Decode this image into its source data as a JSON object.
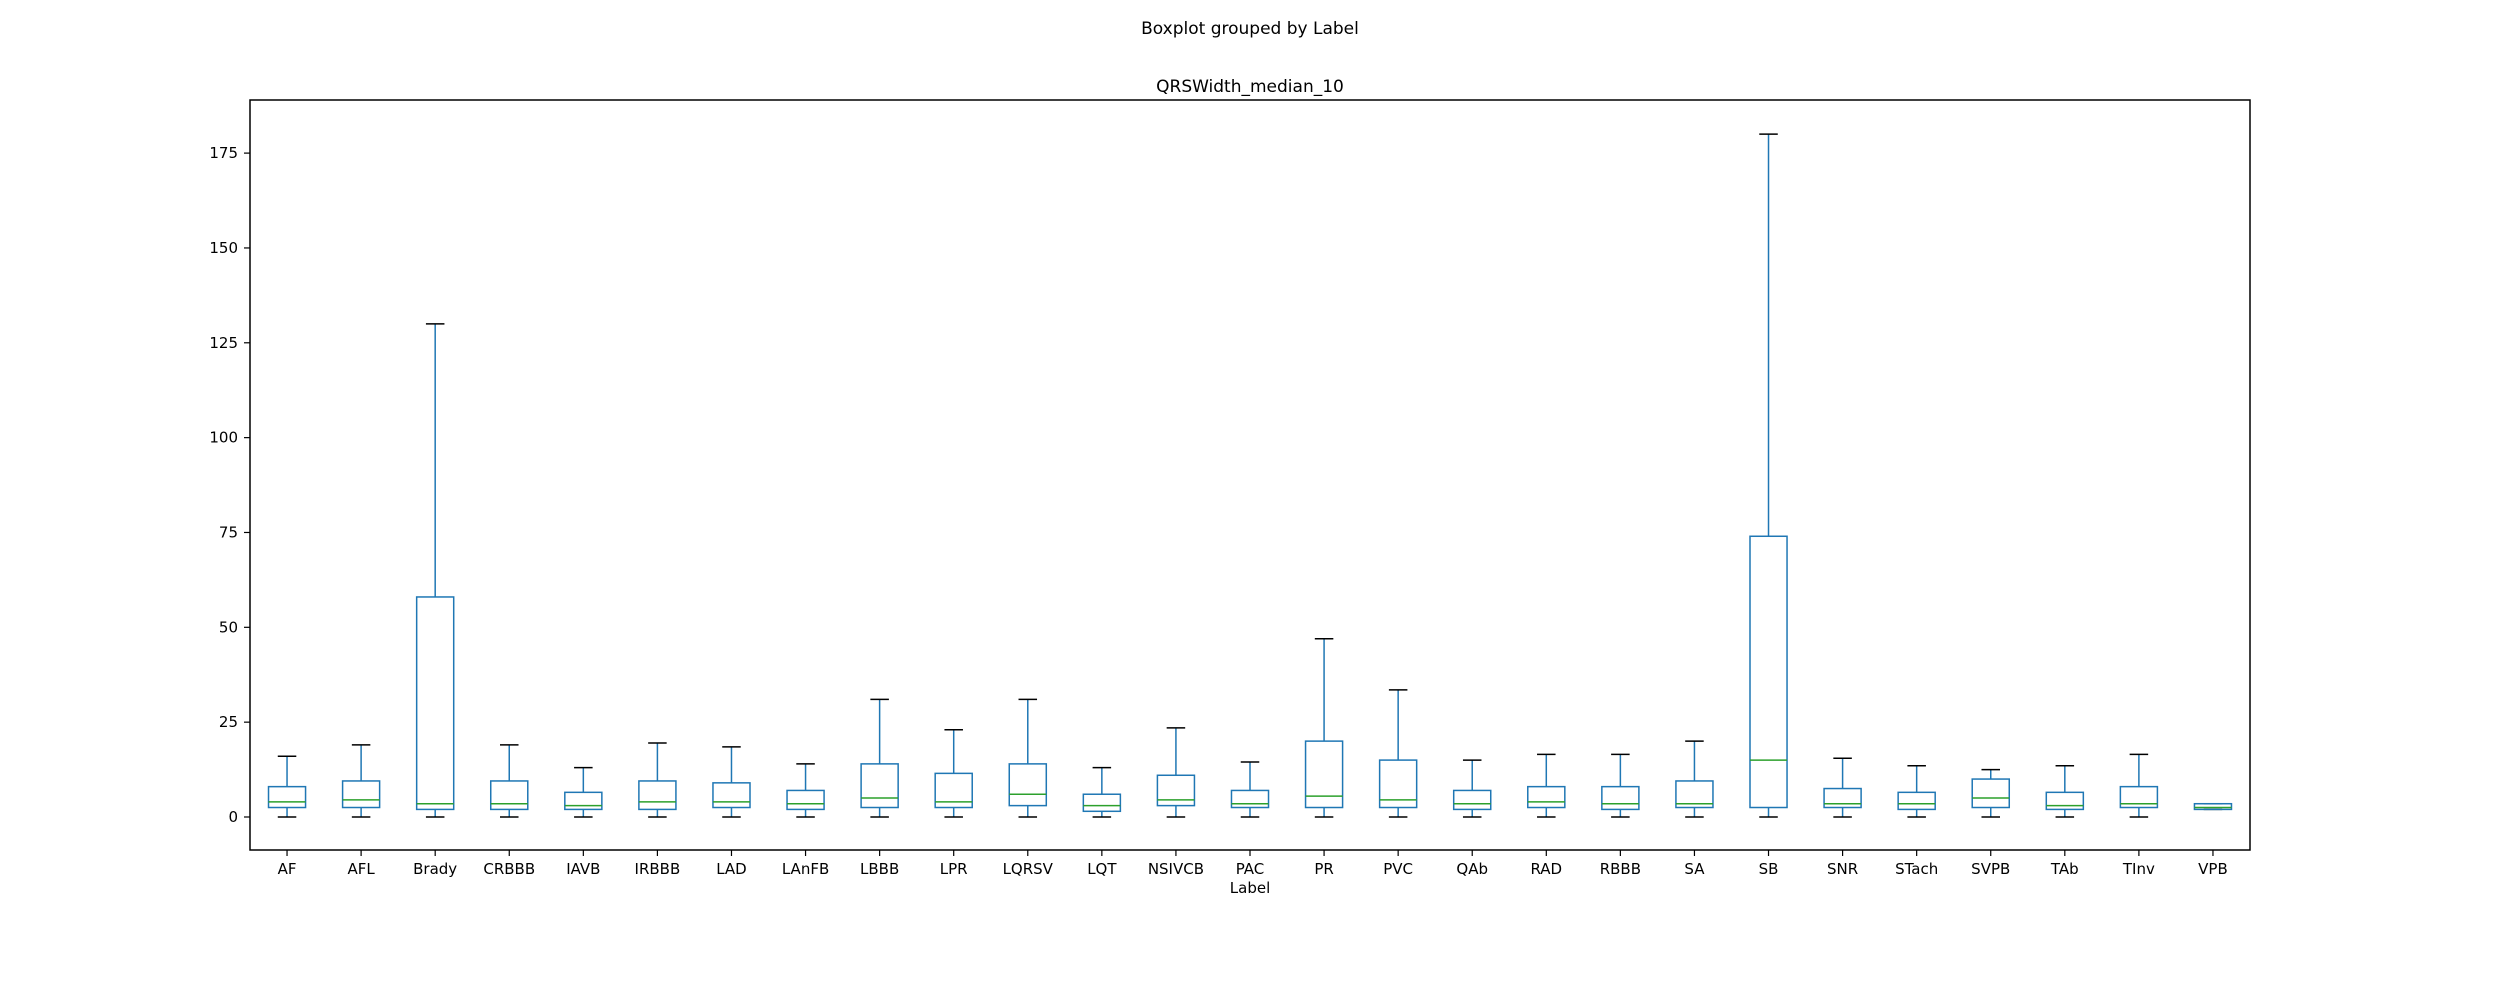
{
  "figure": {
    "suptitle": "Boxplot grouped by Label"
  },
  "chart_data": {
    "type": "boxplot",
    "title": "QRSWidth_median_10",
    "xlabel": "Label",
    "ylabel": "",
    "ylim": [
      -8.7,
      189.0
    ],
    "yticks": [
      0,
      25,
      50,
      75,
      100,
      125,
      150,
      175
    ],
    "grid": false,
    "colors": {
      "box": "#1f77b4",
      "median": "#2ca02c",
      "whisker_cap": "#000000"
    },
    "categories": [
      "AF",
      "AFL",
      "Brady",
      "CRBBB",
      "IAVB",
      "IRBBB",
      "LAD",
      "LAnFB",
      "LBBB",
      "LPR",
      "LQRSV",
      "LQT",
      "NSIVCB",
      "PAC",
      "PR",
      "PVC",
      "QAb",
      "RAD",
      "RBBB",
      "SA",
      "SB",
      "SNR",
      "STach",
      "SVPB",
      "TAb",
      "TInv",
      "VPB"
    ],
    "boxes": [
      {
        "label": "AF",
        "whislo": 0,
        "q1": 2.5,
        "med": 4.0,
        "q3": 8.0,
        "whishi": 16.0
      },
      {
        "label": "AFL",
        "whislo": 0,
        "q1": 2.5,
        "med": 4.5,
        "q3": 9.5,
        "whishi": 19.0
      },
      {
        "label": "Brady",
        "whislo": 0,
        "q1": 2.0,
        "med": 3.5,
        "q3": 58.0,
        "whishi": 130.0
      },
      {
        "label": "CRBBB",
        "whislo": 0,
        "q1": 2.0,
        "med": 3.5,
        "q3": 9.5,
        "whishi": 19.0
      },
      {
        "label": "IAVB",
        "whislo": 0,
        "q1": 2.0,
        "med": 3.0,
        "q3": 6.5,
        "whishi": 13.0
      },
      {
        "label": "IRBBB",
        "whislo": 0,
        "q1": 2.0,
        "med": 4.0,
        "q3": 9.5,
        "whishi": 19.5
      },
      {
        "label": "LAD",
        "whislo": 0,
        "q1": 2.5,
        "med": 4.0,
        "q3": 9.0,
        "whishi": 18.5
      },
      {
        "label": "LAnFB",
        "whislo": 0,
        "q1": 2.0,
        "med": 3.5,
        "q3": 7.0,
        "whishi": 14.0
      },
      {
        "label": "LBBB",
        "whislo": 0,
        "q1": 2.5,
        "med": 5.0,
        "q3": 14.0,
        "whishi": 31.0
      },
      {
        "label": "LPR",
        "whislo": 0,
        "q1": 2.5,
        "med": 4.0,
        "q3": 11.5,
        "whishi": 23.0
      },
      {
        "label": "LQRSV",
        "whislo": 0,
        "q1": 3.0,
        "med": 6.0,
        "q3": 14.0,
        "whishi": 31.0
      },
      {
        "label": "LQT",
        "whislo": 0,
        "q1": 1.5,
        "med": 3.0,
        "q3": 6.0,
        "whishi": 13.0
      },
      {
        "label": "NSIVCB",
        "whislo": 0,
        "q1": 3.0,
        "med": 4.5,
        "q3": 11.0,
        "whishi": 23.5
      },
      {
        "label": "PAC",
        "whislo": 0,
        "q1": 2.5,
        "med": 3.5,
        "q3": 7.0,
        "whishi": 14.5
      },
      {
        "label": "PR",
        "whislo": 0,
        "q1": 2.5,
        "med": 5.5,
        "q3": 20.0,
        "whishi": 47.0
      },
      {
        "label": "PVC",
        "whislo": 0,
        "q1": 2.5,
        "med": 4.5,
        "q3": 15.0,
        "whishi": 33.5
      },
      {
        "label": "QAb",
        "whislo": 0,
        "q1": 2.0,
        "med": 3.5,
        "q3": 7.0,
        "whishi": 15.0
      },
      {
        "label": "RAD",
        "whislo": 0,
        "q1": 2.5,
        "med": 4.0,
        "q3": 8.0,
        "whishi": 16.5
      },
      {
        "label": "RBBB",
        "whislo": 0,
        "q1": 2.0,
        "med": 3.5,
        "q3": 8.0,
        "whishi": 16.5
      },
      {
        "label": "SA",
        "whislo": 0,
        "q1": 2.5,
        "med": 3.5,
        "q3": 9.5,
        "whishi": 20.0
      },
      {
        "label": "SB",
        "whislo": 0,
        "q1": 2.5,
        "med": 15.0,
        "q3": 74.0,
        "whishi": 180.0
      },
      {
        "label": "SNR",
        "whislo": 0,
        "q1": 2.5,
        "med": 3.5,
        "q3": 7.5,
        "whishi": 15.5
      },
      {
        "label": "STach",
        "whislo": 0,
        "q1": 2.0,
        "med": 3.5,
        "q3": 6.5,
        "whishi": 13.5
      },
      {
        "label": "SVPB",
        "whislo": 0,
        "q1": 2.5,
        "med": 5.0,
        "q3": 10.0,
        "whishi": 12.5
      },
      {
        "label": "TAb",
        "whislo": 0,
        "q1": 2.0,
        "med": 3.0,
        "q3": 6.5,
        "whishi": 13.5
      },
      {
        "label": "TInv",
        "whislo": 0,
        "q1": 2.5,
        "med": 3.5,
        "q3": 8.0,
        "whishi": 16.5
      },
      {
        "label": "VPB",
        "whislo": 2,
        "q1": 2.0,
        "med": 2.5,
        "q3": 3.5,
        "whishi": 3.5
      }
    ]
  }
}
